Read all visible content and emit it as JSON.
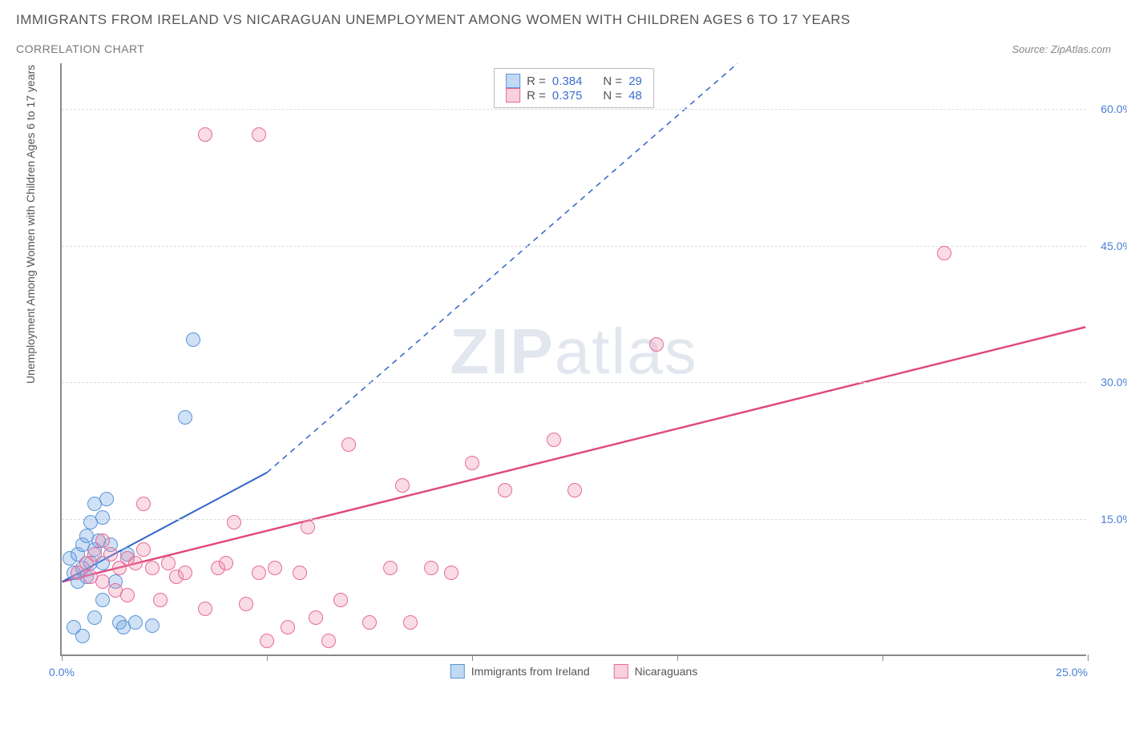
{
  "title": "IMMIGRANTS FROM IRELAND VS NICARAGUAN UNEMPLOYMENT AMONG WOMEN WITH CHILDREN AGES 6 TO 17 YEARS",
  "subtitle": "CORRELATION CHART",
  "source": "Source: ZipAtlas.com",
  "yaxis_label": "Unemployment Among Women with Children Ages 6 to 17 years",
  "watermark_bold": "ZIP",
  "watermark_light": "atlas",
  "chart": {
    "type": "scatter",
    "xlim": [
      0,
      25
    ],
    "ylim": [
      0,
      65
    ],
    "x_ticks": [
      0,
      5,
      10,
      15,
      20,
      25
    ],
    "x_tick_labels": [
      "0.0%",
      "",
      "",
      "",
      "",
      "25.0%"
    ],
    "y_ticks": [
      15,
      30,
      45,
      60
    ],
    "y_tick_labels": [
      "15.0%",
      "30.0%",
      "45.0%",
      "60.0%"
    ],
    "grid_color": "#dddddd",
    "axis_color": "#888888",
    "background": "#ffffff",
    "series": [
      {
        "name": "Immigrants from Ireland",
        "color_fill": "rgba(120,170,230,0.35)",
        "color_stroke": "#5a95d8",
        "marker_radius": 9,
        "R": "0.384",
        "N": "29",
        "trend": {
          "x1": 0,
          "y1": 8,
          "x2": 5,
          "y2": 20,
          "x2_dash": 16.5,
          "y2_dash": 65,
          "color": "#2e64c9",
          "width": 2
        },
        "points": [
          [
            0.2,
            10.5
          ],
          [
            0.3,
            9.0
          ],
          [
            0.4,
            8.0
          ],
          [
            0.4,
            11.0
          ],
          [
            0.5,
            12.0
          ],
          [
            0.5,
            9.5
          ],
          [
            0.6,
            13.0
          ],
          [
            0.6,
            8.5
          ],
          [
            0.7,
            14.5
          ],
          [
            0.7,
            10.0
          ],
          [
            0.8,
            11.5
          ],
          [
            0.8,
            16.5
          ],
          [
            0.9,
            12.5
          ],
          [
            1.0,
            10.0
          ],
          [
            1.0,
            15.0
          ],
          [
            1.1,
            17.0
          ],
          [
            1.2,
            12.0
          ],
          [
            1.3,
            8.0
          ],
          [
            1.4,
            3.5
          ],
          [
            1.5,
            3.0
          ],
          [
            1.8,
            3.5
          ],
          [
            2.2,
            3.2
          ],
          [
            0.3,
            3.0
          ],
          [
            0.5,
            2.0
          ],
          [
            0.8,
            4.0
          ],
          [
            3.0,
            26.0
          ],
          [
            3.2,
            34.5
          ],
          [
            1.6,
            11.0
          ],
          [
            1.0,
            6.0
          ]
        ]
      },
      {
        "name": "Nicaraguans",
        "color_fill": "rgba(240,140,170,0.3)",
        "color_stroke": "#e76a9a",
        "marker_radius": 9,
        "R": "0.375",
        "N": "48",
        "trend": {
          "x1": 0,
          "y1": 8,
          "x2": 25,
          "y2": 36,
          "color": "#e04880",
          "width": 2.5
        },
        "points": [
          [
            0.4,
            9.0
          ],
          [
            0.6,
            10.0
          ],
          [
            0.8,
            11.0
          ],
          [
            1.0,
            12.5
          ],
          [
            1.2,
            11.0
          ],
          [
            1.4,
            9.5
          ],
          [
            1.6,
            10.5
          ],
          [
            1.8,
            10.0
          ],
          [
            2.0,
            16.5
          ],
          [
            2.2,
            9.5
          ],
          [
            2.4,
            6.0
          ],
          [
            2.6,
            10.0
          ],
          [
            2.8,
            8.5
          ],
          [
            3.0,
            9.0
          ],
          [
            3.5,
            5.0
          ],
          [
            3.8,
            9.5
          ],
          [
            4.0,
            10.0
          ],
          [
            4.2,
            14.5
          ],
          [
            4.5,
            5.5
          ],
          [
            4.8,
            9.0
          ],
          [
            5.0,
            1.5
          ],
          [
            5.2,
            9.5
          ],
          [
            5.5,
            3.0
          ],
          [
            5.8,
            9.0
          ],
          [
            6.0,
            14.0
          ],
          [
            6.2,
            4.0
          ],
          [
            6.5,
            1.5
          ],
          [
            6.8,
            6.0
          ],
          [
            7.0,
            23.0
          ],
          [
            7.5,
            3.5
          ],
          [
            8.0,
            9.5
          ],
          [
            8.3,
            18.5
          ],
          [
            8.5,
            3.5
          ],
          [
            9.0,
            9.5
          ],
          [
            9.5,
            9.0
          ],
          [
            10.0,
            21.0
          ],
          [
            10.8,
            18.0
          ],
          [
            12.0,
            23.5
          ],
          [
            12.5,
            18.0
          ],
          [
            14.5,
            34.0
          ],
          [
            3.5,
            57.0
          ],
          [
            4.8,
            57.0
          ],
          [
            21.5,
            44.0
          ],
          [
            1.0,
            8.0
          ],
          [
            1.3,
            7.0
          ],
          [
            1.6,
            6.5
          ],
          [
            2.0,
            11.5
          ],
          [
            0.7,
            8.5
          ]
        ]
      }
    ]
  },
  "legend_top": {
    "r_label": "R =",
    "n_label": "N ="
  },
  "legend_bottom": {
    "items": [
      "Immigrants from Ireland",
      "Nicaraguans"
    ]
  }
}
